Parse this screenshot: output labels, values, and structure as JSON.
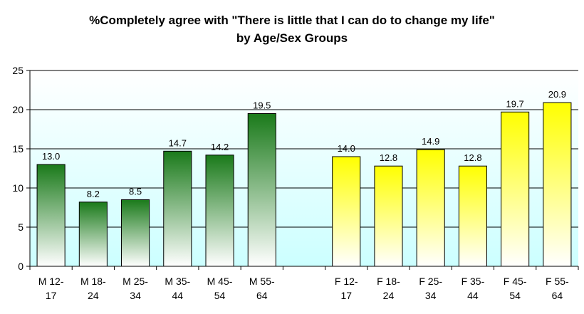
{
  "chart_data": {
    "type": "bar",
    "title_lines": [
      "%Completely agree with \"There is little that I can do to change my life\"",
      "by Age/Sex Groups"
    ],
    "xlabel": "",
    "ylabel": "",
    "ylim": [
      0,
      25
    ],
    "yticks": [
      "0",
      "5",
      "10",
      "15",
      "20",
      "25"
    ],
    "grid": true,
    "categories": [
      [
        "M 12-",
        "17"
      ],
      [
        "M 18-",
        "24"
      ],
      [
        "M 25-",
        "34"
      ],
      [
        "M 35-",
        "44"
      ],
      [
        "M 45-",
        "54"
      ],
      [
        "M 55-",
        "64"
      ],
      [
        "",
        ""
      ],
      [
        "F 12-",
        "17"
      ],
      [
        "F 18-",
        "24"
      ],
      [
        "F 25-",
        "34"
      ],
      [
        "F 35-",
        "44"
      ],
      [
        "F 45-",
        "54"
      ],
      [
        "F 55-",
        "64"
      ]
    ],
    "values": [
      13.0,
      8.2,
      8.5,
      14.7,
      14.2,
      19.5,
      null,
      14.0,
      12.8,
      14.9,
      12.8,
      19.7,
      20.9
    ],
    "data_labels": [
      "13.0",
      "8.2",
      "8.5",
      "14.7",
      "14.2",
      "19.5",
      "",
      "14.0",
      "12.8",
      "14.9",
      "12.8",
      "19.7",
      "20.9"
    ],
    "colors": {
      "male_top": "#1a7a1a",
      "male_bottom": "#ffffff",
      "female_top": "#ffff00",
      "female_bottom": "#ffffff",
      "plot_top": "#ffffff",
      "plot_bottom": "#ccffff",
      "bar_stroke": "#000000",
      "grid": "#000000"
    }
  }
}
